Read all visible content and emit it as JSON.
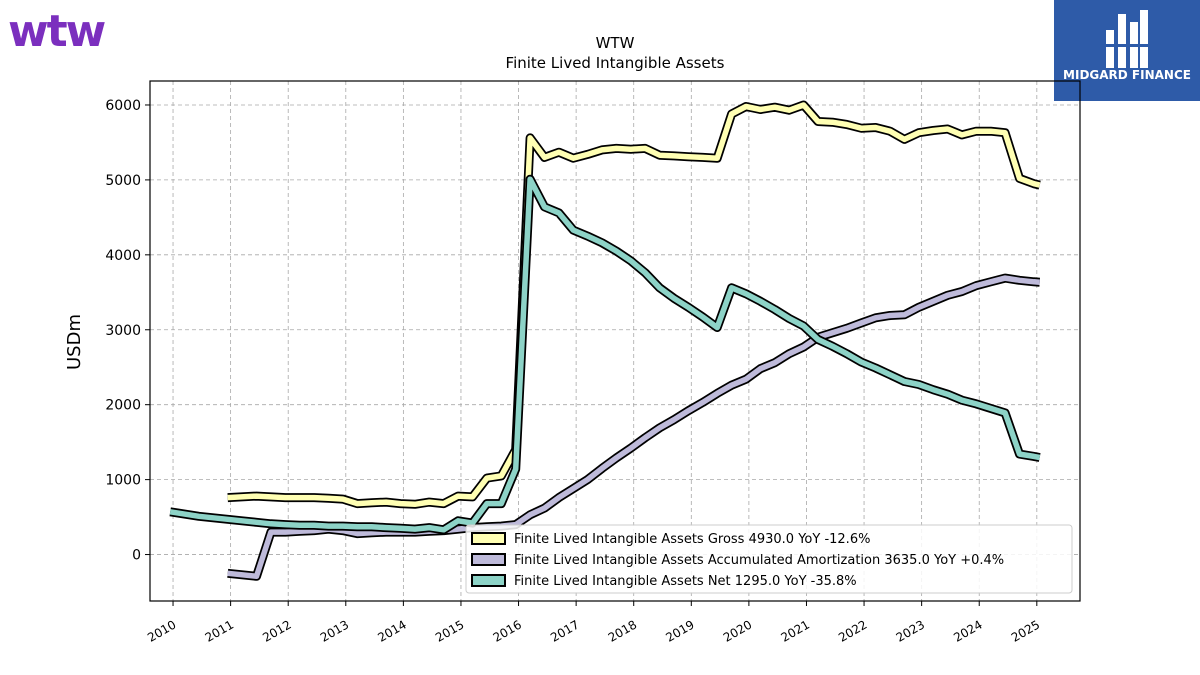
{
  "branding": {
    "left_logo_text": "wtw",
    "right_logo_text": "MIDGARD FINANCE"
  },
  "chart_data": {
    "type": "line",
    "title": "WTW",
    "subtitle": "Finite Lived Intangible Assets",
    "xlabel": "",
    "ylabel": "USDm",
    "xlim": [
      2009.6,
      2025.75
    ],
    "ylim": [
      -620,
      6320
    ],
    "x_ticks": [
      2010,
      2011,
      2012,
      2013,
      2014,
      2015,
      2016,
      2017,
      2018,
      2019,
      2020,
      2021,
      2022,
      2023,
      2024,
      2025
    ],
    "x_tick_labels": [
      "2010",
      "2011",
      "2012",
      "2013",
      "2014",
      "2015",
      "2016",
      "2017",
      "2018",
      "2019",
      "2020",
      "2021",
      "2022",
      "2023",
      "2024",
      "2025"
    ],
    "y_ticks": [
      0,
      1000,
      2000,
      3000,
      4000,
      5000,
      6000
    ],
    "y_tick_labels": [
      "0",
      "1000",
      "2000",
      "3000",
      "4000",
      "5000",
      "6000"
    ],
    "grid": true,
    "legend_position": "lower-right",
    "series": [
      {
        "name": "Finite Lived Intangible Assets Gross",
        "legend_label": "Finite Lived Intangible Assets Gross  4930.0 YoY -12.6%",
        "color": "#ffffb3",
        "x": [
          2010.95,
          2011.45,
          2011.7,
          2011.95,
          2012.2,
          2012.45,
          2012.7,
          2012.95,
          2013.2,
          2013.45,
          2013.7,
          2013.95,
          2014.2,
          2014.45,
          2014.7,
          2014.95,
          2015.2,
          2015.45,
          2015.7,
          2015.95,
          2016.2,
          2016.45,
          2016.7,
          2016.95,
          2017.2,
          2017.45,
          2017.7,
          2017.95,
          2018.2,
          2018.45,
          2018.7,
          2018.95,
          2019.2,
          2019.45,
          2019.7,
          2019.95,
          2020.2,
          2020.45,
          2020.7,
          2020.95,
          2021.2,
          2021.45,
          2021.7,
          2021.95,
          2022.2,
          2022.45,
          2022.7,
          2022.95,
          2023.2,
          2023.45,
          2023.7,
          2023.95,
          2024.2,
          2024.45,
          2024.7,
          2024.95,
          2025.05
        ],
        "y": [
          760,
          780,
          770,
          760,
          760,
          760,
          750,
          740,
          680,
          690,
          700,
          680,
          670,
          700,
          680,
          780,
          770,
          1020,
          1050,
          1400,
          5560,
          5300,
          5370,
          5290,
          5340,
          5400,
          5420,
          5410,
          5420,
          5330,
          5320,
          5310,
          5300,
          5290,
          5880,
          5980,
          5940,
          5970,
          5930,
          6000,
          5780,
          5770,
          5740,
          5690,
          5700,
          5650,
          5540,
          5630,
          5660,
          5680,
          5600,
          5650,
          5650,
          5630,
          5020,
          4950,
          4930
        ]
      },
      {
        "name": "Finite Lived Intangible Assets Accumulated Amortization",
        "legend_label": "Finite Lived Intangible Assets Accumulated Amortization  3635.0 YoY +0.4%",
        "color": "#bebada",
        "x": [
          2010.95,
          2011.45,
          2011.7,
          2011.95,
          2012.2,
          2012.45,
          2012.7,
          2012.95,
          2013.2,
          2013.45,
          2013.7,
          2013.95,
          2014.2,
          2014.45,
          2014.7,
          2014.95,
          2015.2,
          2015.45,
          2015.7,
          2015.95,
          2016.2,
          2016.45,
          2016.7,
          2016.95,
          2017.2,
          2017.45,
          2017.7,
          2017.95,
          2018.2,
          2018.45,
          2018.7,
          2018.95,
          2019.2,
          2019.45,
          2019.7,
          2019.95,
          2020.2,
          2020.45,
          2020.7,
          2020.95,
          2021.2,
          2021.45,
          2021.7,
          2021.95,
          2022.2,
          2022.45,
          2022.7,
          2022.95,
          2023.2,
          2023.45,
          2023.7,
          2023.95,
          2024.2,
          2024.45,
          2024.7,
          2024.95,
          2025.05
        ],
        "y": [
          -250,
          -290,
          300,
          300,
          310,
          320,
          340,
          320,
          280,
          290,
          300,
          300,
          300,
          310,
          320,
          340,
          360,
          370,
          380,
          400,
          530,
          620,
          760,
          880,
          1000,
          1150,
          1290,
          1420,
          1560,
          1690,
          1800,
          1920,
          2030,
          2150,
          2260,
          2340,
          2480,
          2560,
          2680,
          2770,
          2900,
          2960,
          3020,
          3090,
          3160,
          3190,
          3200,
          3300,
          3380,
          3460,
          3510,
          3590,
          3640,
          3690,
          3660,
          3640,
          3635
        ]
      },
      {
        "name": "Finite Lived Intangible Assets Net",
        "legend_label": "Finite Lived Intangible Assets Net  1295.0 YoY -35.8%",
        "color": "#8dd3c7",
        "x": [
          2009.95,
          2010.45,
          2010.7,
          2010.95,
          2011.2,
          2011.45,
          2011.7,
          2011.95,
          2012.2,
          2012.45,
          2012.7,
          2012.95,
          2013.2,
          2013.45,
          2013.7,
          2013.95,
          2014.2,
          2014.45,
          2014.7,
          2014.95,
          2015.2,
          2015.45,
          2015.7,
          2015.95,
          2016.2,
          2016.45,
          2016.7,
          2016.95,
          2017.2,
          2017.45,
          2017.7,
          2017.95,
          2018.2,
          2018.45,
          2018.7,
          2018.95,
          2019.2,
          2019.45,
          2019.7,
          2019.95,
          2020.2,
          2020.45,
          2020.7,
          2020.95,
          2021.2,
          2021.45,
          2021.7,
          2021.95,
          2022.2,
          2022.45,
          2022.7,
          2022.95,
          2023.2,
          2023.45,
          2023.7,
          2023.95,
          2024.2,
          2024.45,
          2024.7,
          2024.95,
          2025.05
        ],
        "y": [
          570,
          510,
          490,
          470,
          450,
          430,
          410,
          400,
          390,
          390,
          380,
          380,
          370,
          370,
          360,
          350,
          340,
          360,
          330,
          450,
          420,
          680,
          680,
          1140,
          5010,
          4640,
          4560,
          4330,
          4250,
          4160,
          4050,
          3920,
          3760,
          3560,
          3420,
          3300,
          3170,
          3030,
          3560,
          3480,
          3380,
          3270,
          3150,
          3050,
          2870,
          2780,
          2680,
          2570,
          2490,
          2400,
          2310,
          2270,
          2200,
          2140,
          2060,
          2010,
          1950,
          1890,
          1340,
          1310,
          1295
        ]
      }
    ]
  }
}
